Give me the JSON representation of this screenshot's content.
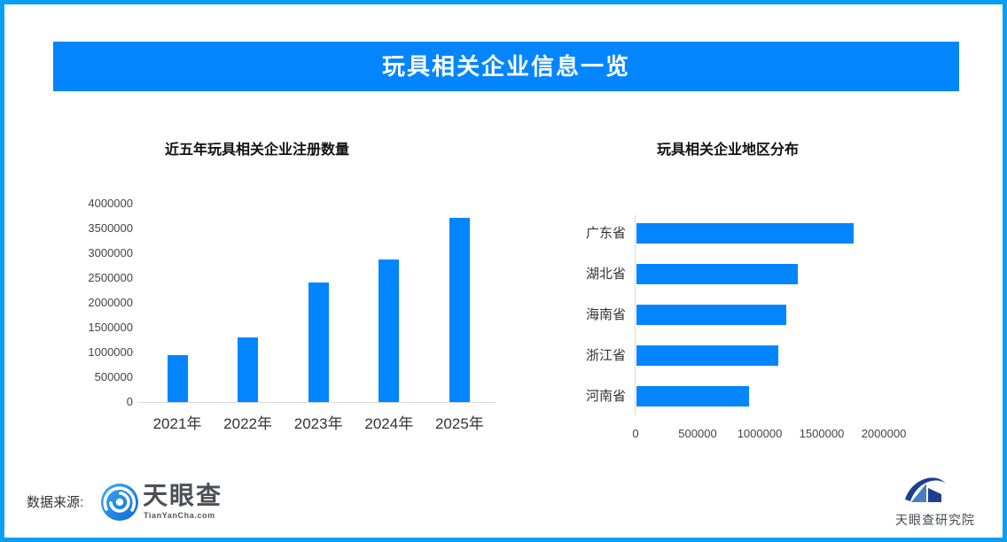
{
  "header": {
    "title": "玩具相关企业信息一览"
  },
  "chart_data": [
    {
      "type": "bar",
      "title": "近五年玩具相关企业注册数量",
      "categories": [
        "2021年",
        "2022年",
        "2023年",
        "2024年",
        "2025年"
      ],
      "values": [
        950000,
        1310000,
        2410000,
        2880000,
        3720000
      ],
      "xlabel": "",
      "ylabel": "",
      "ylim": [
        0,
        4000000
      ],
      "yticks": [
        4000000,
        3500000,
        3000000,
        2500000,
        2000000,
        1500000,
        1000000,
        500000,
        0
      ],
      "grid": false,
      "legend": false,
      "bar_color": "#0385fd"
    },
    {
      "type": "bar-horizontal",
      "title": "玩具相关企业地区分布",
      "categories": [
        "广东省",
        "湖北省",
        "海南省",
        "浙江省",
        "河南省"
      ],
      "values": [
        1750000,
        1300000,
        1210000,
        1140000,
        910000
      ],
      "xlim": [
        0,
        2000000
      ],
      "xticks": [
        0,
        500000,
        1000000,
        1500000,
        2000000
      ],
      "grid": false,
      "legend": false,
      "bar_color": "#0385fd"
    }
  ],
  "footer": {
    "source_label": "数据来源:",
    "tianyancha_wordmark": "天眼查",
    "tianyancha_domain": "TianYanCha.com",
    "research_institute": "天眼查研究院"
  },
  "colors": {
    "accent_blue": "#0385fd",
    "frame_blue": "#09a0f3",
    "axis_gray": "#d9d9d9",
    "text_dark": "#333333",
    "logo_gray": "#4d4f58"
  }
}
